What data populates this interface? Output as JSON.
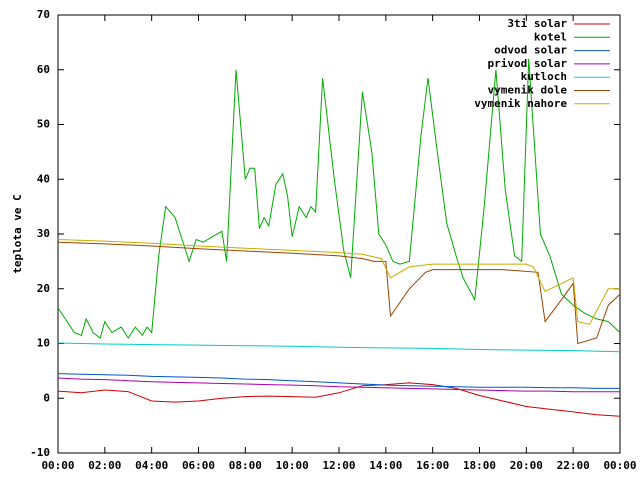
{
  "chart_data": {
    "type": "line",
    "ylabel": "teplota ve C",
    "xlim": [
      0,
      24
    ],
    "xticks": [
      {
        "value": 0,
        "label": "00:00"
      },
      {
        "value": 2,
        "label": "02:00"
      },
      {
        "value": 4,
        "label": "04:00"
      },
      {
        "value": 6,
        "label": "06:00"
      },
      {
        "value": 8,
        "label": "08:00"
      },
      {
        "value": 10,
        "label": "10:00"
      },
      {
        "value": 12,
        "label": "12:00"
      },
      {
        "value": 14,
        "label": "14:00"
      },
      {
        "value": 16,
        "label": "16:00"
      },
      {
        "value": 18,
        "label": "18:00"
      },
      {
        "value": 20,
        "label": "20:00"
      },
      {
        "value": 22,
        "label": "22:00"
      },
      {
        "value": 24,
        "label": "00:00"
      }
    ],
    "ylim": [
      -10,
      70
    ],
    "yticks": [
      -10,
      0,
      10,
      20,
      30,
      40,
      50,
      60,
      70
    ],
    "grid": false,
    "legend": "upper right",
    "series": [
      {
        "name": "3ti solar",
        "color": "#cc0000",
        "x": [
          0,
          1,
          2,
          3,
          4,
          5,
          6,
          7,
          8,
          9,
          10,
          11,
          12,
          13,
          14,
          15,
          16,
          17,
          18,
          19,
          20,
          21,
          22,
          23,
          24
        ],
        "values": [
          1.3,
          1.0,
          1.5,
          1.2,
          -0.5,
          -0.7,
          -0.5,
          0,
          0.3,
          0.4,
          0.3,
          0.2,
          1,
          2.3,
          2.5,
          2.8,
          2.5,
          1.8,
          0.5,
          -0.5,
          -1.5,
          -2,
          -2.5,
          -3,
          -3.3
        ]
      },
      {
        "name": "kotel",
        "color": "#00aa00",
        "x": [
          0,
          0.7,
          1,
          1.2,
          1.5,
          1.8,
          2,
          2.3,
          2.7,
          3,
          3.3,
          3.6,
          3.8,
          4,
          4.3,
          4.6,
          5,
          5.3,
          5.6,
          5.9,
          6.2,
          6.6,
          7,
          7.2,
          7.6,
          8,
          8.2,
          8.4,
          8.6,
          8.8,
          9,
          9.3,
          9.6,
          9.8,
          10,
          10.3,
          10.6,
          10.8,
          11,
          11.3,
          11.8,
          12.2,
          12.5,
          13,
          13.4,
          13.7,
          14,
          14.3,
          14.6,
          15,
          15.5,
          15.8,
          16.2,
          16.6,
          17,
          17.3,
          17.8,
          18.2,
          18.7,
          19.1,
          19.5,
          19.8,
          20.1,
          20.6,
          21,
          21.5,
          22,
          22.5,
          23,
          23.5,
          24
        ],
        "values": [
          16.5,
          12,
          11.5,
          14.5,
          12,
          11,
          14,
          12,
          13,
          11,
          13,
          11.5,
          13,
          12,
          26,
          35,
          33,
          29,
          25,
          29,
          28.5,
          29.5,
          30.5,
          25,
          60,
          40,
          42,
          42,
          31,
          33,
          31.5,
          39,
          41,
          37,
          29.5,
          35,
          33,
          35,
          34,
          58.5,
          40,
          27,
          22,
          56,
          45,
          30,
          28,
          25,
          24.5,
          25,
          48,
          58.5,
          45,
          32,
          26,
          22,
          18,
          35,
          60,
          38,
          26,
          25,
          62,
          30,
          26,
          19,
          17,
          15.5,
          14.5,
          14,
          12
        ]
      },
      {
        "name": "odvod solar",
        "color": "#0055cc",
        "x": [
          0,
          1,
          2,
          3,
          4,
          5,
          6,
          7,
          8,
          9,
          10,
          11,
          12,
          13,
          14,
          15,
          16,
          17,
          18,
          19,
          20,
          21,
          22,
          23,
          24
        ],
        "values": [
          4.5,
          4.4,
          4.3,
          4.2,
          4.0,
          3.9,
          3.8,
          3.7,
          3.5,
          3.4,
          3.2,
          3.0,
          2.8,
          2.6,
          2.4,
          2.3,
          2.2,
          2.1,
          2.0,
          2.0,
          2.0,
          1.9,
          1.9,
          1.8,
          1.8
        ]
      },
      {
        "name": "privod solar",
        "color": "#aa00aa",
        "x": [
          0,
          1,
          2,
          3,
          4,
          5,
          6,
          7,
          8,
          9,
          10,
          11,
          12,
          13,
          14,
          15,
          16,
          17,
          18,
          19,
          20,
          21,
          22,
          23,
          24
        ],
        "values": [
          3.7,
          3.5,
          3.4,
          3.2,
          3.0,
          2.9,
          2.8,
          2.7,
          2.6,
          2.5,
          2.4,
          2.3,
          2.1,
          2.0,
          1.9,
          1.8,
          1.7,
          1.6,
          1.5,
          1.4,
          1.3,
          1.3,
          1.2,
          1.2,
          1.2
        ]
      },
      {
        "name": "kutloch",
        "color": "#00cccc",
        "x": [
          0,
          2,
          4,
          6,
          8,
          10,
          12,
          14,
          16,
          18,
          20,
          22,
          24
        ],
        "values": [
          10.1,
          9.9,
          9.8,
          9.7,
          9.6,
          9.5,
          9.3,
          9.2,
          9.1,
          8.9,
          8.8,
          8.7,
          8.5
        ]
      },
      {
        "name": "vymenik dole",
        "color": "#994400",
        "x": [
          0,
          2,
          4,
          6,
          8,
          10,
          12,
          13,
          13.5,
          14,
          14.2,
          15,
          15.7,
          16,
          19,
          20.5,
          20.8,
          21.5,
          22,
          22.2,
          23,
          23.5,
          24
        ],
        "values": [
          28.5,
          28.2,
          27.8,
          27.3,
          26.9,
          26.5,
          26,
          25.5,
          25,
          25,
          15,
          20,
          23,
          23.5,
          23.5,
          23,
          14,
          18,
          21,
          10,
          11,
          17,
          19
        ]
      },
      {
        "name": "vymenik nahore",
        "color": "#ccaa00",
        "x": [
          0,
          2,
          4,
          6,
          8,
          10,
          12,
          13,
          13.8,
          14.2,
          15,
          16,
          20,
          20.3,
          20.8,
          22,
          22.2,
          22.7,
          23.5,
          24
        ],
        "values": [
          29,
          28.7,
          28.3,
          27.8,
          27.4,
          27,
          26.6,
          26.3,
          25.5,
          22,
          24,
          24.5,
          24.5,
          24,
          19.5,
          22,
          14,
          13.5,
          20,
          20
        ]
      }
    ]
  }
}
